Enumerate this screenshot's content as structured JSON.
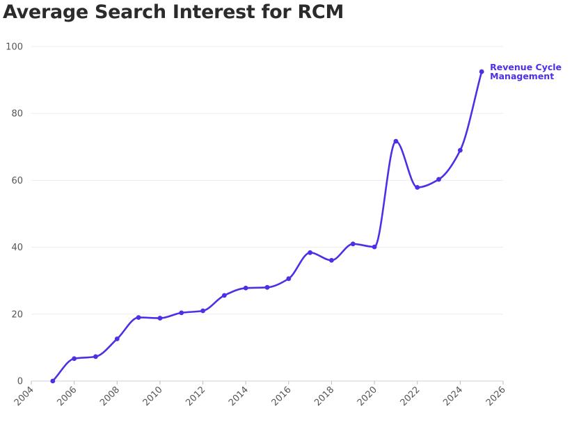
{
  "chart_data": {
    "type": "line",
    "title": "Average Search Interest for RCM",
    "xlabel": "",
    "ylabel": "",
    "xlim": [
      2004,
      2026
    ],
    "ylim": [
      0,
      100
    ],
    "x_ticks": [
      "2004",
      "2006",
      "2008",
      "2010",
      "2012",
      "2014",
      "2016",
      "2018",
      "2020",
      "2022",
      "2024",
      "2026"
    ],
    "y_ticks": [
      "0",
      "20",
      "40",
      "60",
      "80",
      "100"
    ],
    "grid": "horizontal",
    "legend": "end-of-line label",
    "series": [
      {
        "name": "Revenue Cycle Management",
        "color": "#4f2ee6",
        "points": [
          [
            2005,
            0
          ],
          [
            2006,
            6.7
          ],
          [
            2007,
            7.3
          ],
          [
            2008,
            12.6
          ],
          [
            2009,
            19.0
          ],
          [
            2010,
            18.8
          ],
          [
            2011,
            20.4
          ],
          [
            2012,
            21.0
          ],
          [
            2013,
            25.6
          ],
          [
            2014,
            27.8
          ],
          [
            2015,
            28.0
          ],
          [
            2016,
            30.6
          ],
          [
            2017,
            38.4
          ],
          [
            2018,
            36.1
          ],
          [
            2019,
            41.0
          ],
          [
            2020,
            40.1
          ],
          [
            2021,
            71.7
          ],
          [
            2022,
            57.9
          ],
          [
            2023,
            60.3
          ],
          [
            2024,
            69.0
          ],
          [
            2025,
            92.5
          ]
        ]
      }
    ]
  }
}
